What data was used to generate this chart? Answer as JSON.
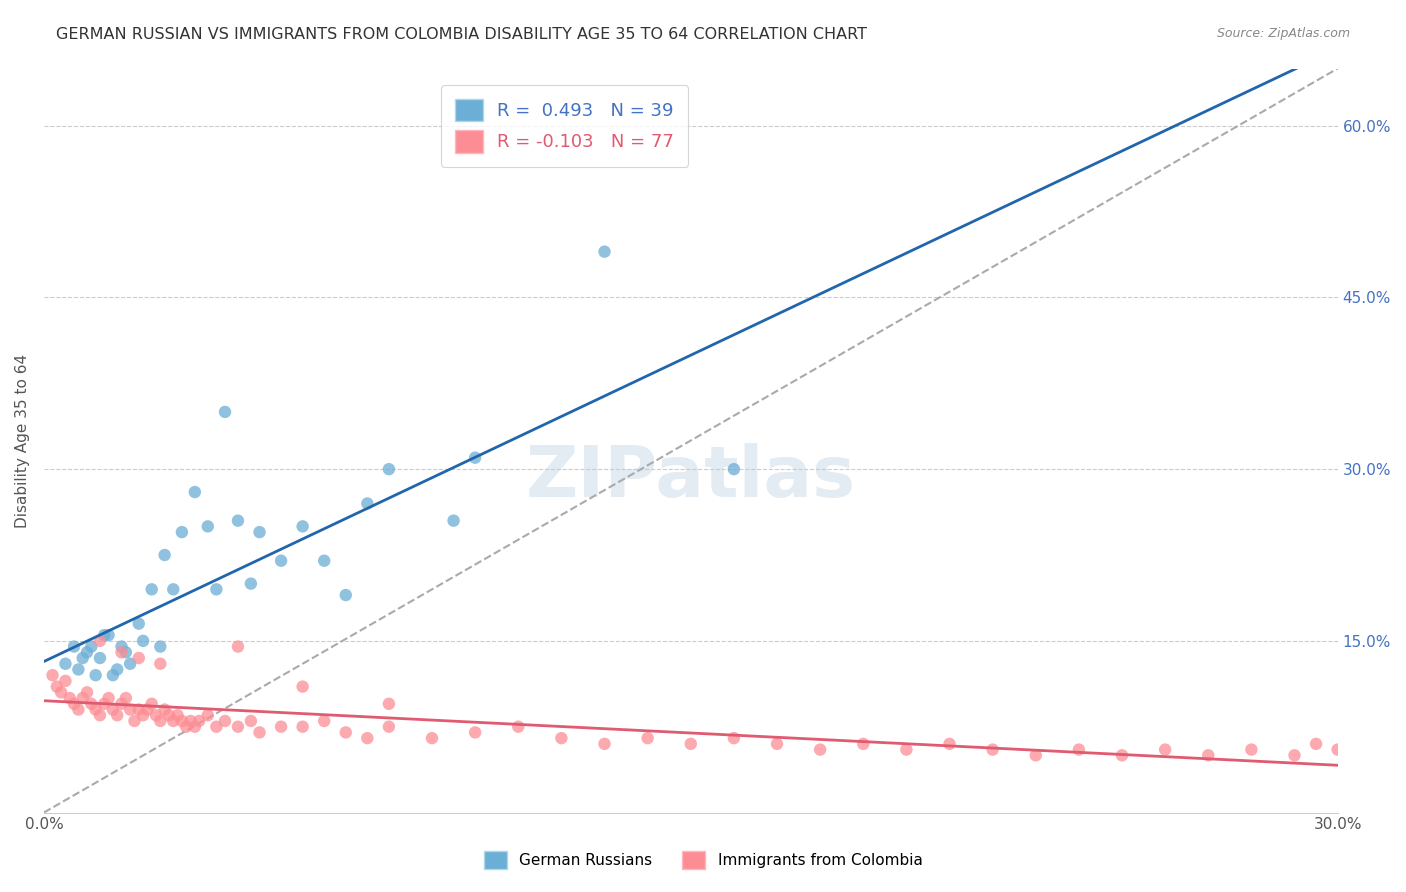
{
  "title": "GERMAN RUSSIAN VS IMMIGRANTS FROM COLOMBIA DISABILITY AGE 35 TO 64 CORRELATION CHART",
  "source": "Source: ZipAtlas.com",
  "ylabel": "Disability Age 35 to 64",
  "xlabel": "",
  "xlim": [
    0.0,
    0.3
  ],
  "ylim": [
    0.0,
    0.65
  ],
  "xticks": [
    0.0,
    0.05,
    0.1,
    0.15,
    0.2,
    0.25,
    0.3
  ],
  "xticklabels": [
    "0.0%",
    "",
    "",
    "",
    "",
    "",
    "30.0%"
  ],
  "yticks_right": [
    0.15,
    0.3,
    0.45,
    0.6
  ],
  "ytick_right_labels": [
    "15.0%",
    "30.0%",
    "45.0%",
    "60.0%"
  ],
  "legend_r1": "R =  0.493",
  "legend_n1": "N = 39",
  "legend_r2": "R = -0.103",
  "legend_n2": "N = 77",
  "blue_color": "#6baed6",
  "pink_color": "#fc8d94",
  "blue_line_color": "#2166ac",
  "pink_line_color": "#e05a70",
  "dashed_line_color": "#aaaaaa",
  "watermark": "ZIPatlas",
  "blue_x": [
    0.005,
    0.007,
    0.008,
    0.009,
    0.01,
    0.011,
    0.012,
    0.013,
    0.014,
    0.015,
    0.016,
    0.017,
    0.018,
    0.019,
    0.02,
    0.022,
    0.023,
    0.025,
    0.027,
    0.028,
    0.03,
    0.032,
    0.035,
    0.038,
    0.04,
    0.042,
    0.045,
    0.048,
    0.05,
    0.055,
    0.06,
    0.065,
    0.07,
    0.075,
    0.08,
    0.095,
    0.1,
    0.13,
    0.16
  ],
  "blue_y": [
    0.13,
    0.145,
    0.125,
    0.135,
    0.14,
    0.145,
    0.12,
    0.135,
    0.155,
    0.155,
    0.12,
    0.125,
    0.145,
    0.14,
    0.13,
    0.165,
    0.15,
    0.195,
    0.145,
    0.225,
    0.195,
    0.245,
    0.28,
    0.25,
    0.195,
    0.35,
    0.255,
    0.2,
    0.245,
    0.22,
    0.25,
    0.22,
    0.19,
    0.27,
    0.3,
    0.255,
    0.31,
    0.49,
    0.3
  ],
  "pink_x": [
    0.002,
    0.003,
    0.004,
    0.005,
    0.006,
    0.007,
    0.008,
    0.009,
    0.01,
    0.011,
    0.012,
    0.013,
    0.014,
    0.015,
    0.016,
    0.017,
    0.018,
    0.019,
    0.02,
    0.021,
    0.022,
    0.023,
    0.024,
    0.025,
    0.026,
    0.027,
    0.028,
    0.029,
    0.03,
    0.031,
    0.032,
    0.033,
    0.034,
    0.035,
    0.036,
    0.038,
    0.04,
    0.042,
    0.045,
    0.048,
    0.05,
    0.055,
    0.06,
    0.065,
    0.07,
    0.075,
    0.08,
    0.09,
    0.1,
    0.11,
    0.12,
    0.13,
    0.14,
    0.15,
    0.16,
    0.17,
    0.18,
    0.19,
    0.2,
    0.21,
    0.22,
    0.23,
    0.24,
    0.25,
    0.26,
    0.27,
    0.28,
    0.29,
    0.295,
    0.3,
    0.013,
    0.018,
    0.022,
    0.027,
    0.045,
    0.06,
    0.08
  ],
  "pink_y": [
    0.12,
    0.11,
    0.105,
    0.115,
    0.1,
    0.095,
    0.09,
    0.1,
    0.105,
    0.095,
    0.09,
    0.085,
    0.095,
    0.1,
    0.09,
    0.085,
    0.095,
    0.1,
    0.09,
    0.08,
    0.09,
    0.085,
    0.09,
    0.095,
    0.085,
    0.08,
    0.09,
    0.085,
    0.08,
    0.085,
    0.08,
    0.075,
    0.08,
    0.075,
    0.08,
    0.085,
    0.075,
    0.08,
    0.075,
    0.08,
    0.07,
    0.075,
    0.075,
    0.08,
    0.07,
    0.065,
    0.075,
    0.065,
    0.07,
    0.075,
    0.065,
    0.06,
    0.065,
    0.06,
    0.065,
    0.06,
    0.055,
    0.06,
    0.055,
    0.06,
    0.055,
    0.05,
    0.055,
    0.05,
    0.055,
    0.05,
    0.055,
    0.05,
    0.06,
    0.055,
    0.15,
    0.14,
    0.135,
    0.13,
    0.145,
    0.11,
    0.095
  ]
}
